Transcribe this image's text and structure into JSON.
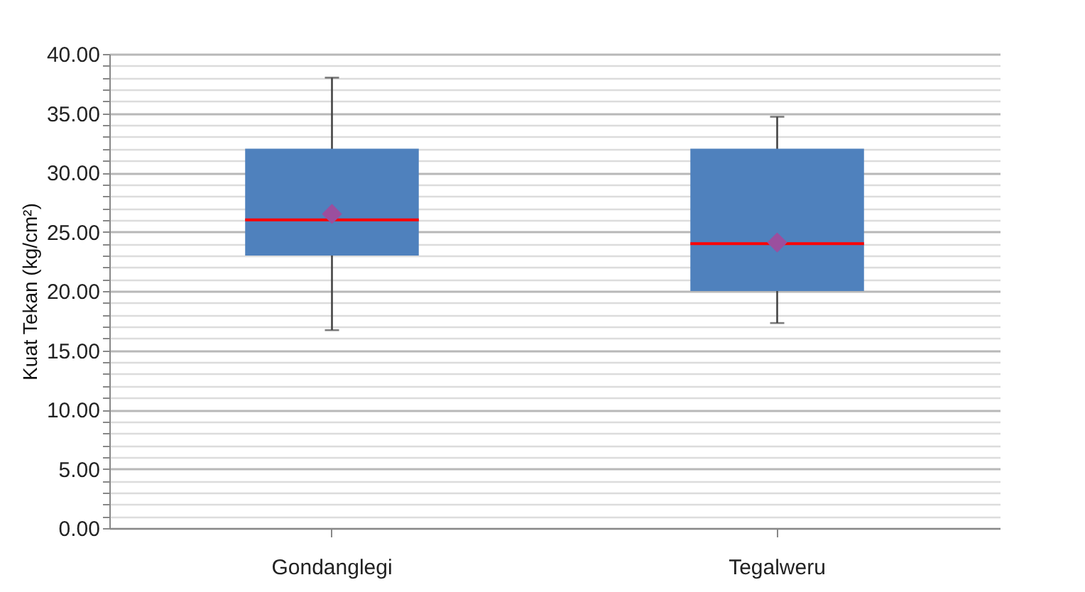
{
  "chart_data": {
    "type": "box",
    "ylabel": "Kuat Tekan (kg/cm²)",
    "categories": [
      "Gondanglegi",
      "Tegalweru"
    ],
    "boxes": [
      {
        "low": 16.7,
        "q1": 23,
        "median": 26,
        "q3": 32,
        "high": 38,
        "mean": 26.5
      },
      {
        "low": 17.3,
        "q1": 20,
        "median": 24,
        "q3": 32,
        "high": 34.7,
        "mean": 24.1
      }
    ],
    "color": "#4f81bd",
    "marker": "diamond",
    "ylim": [
      0,
      40
    ],
    "yticks": [
      {
        "value": 0,
        "label": "0.00"
      },
      {
        "value": 1,
        "label": null
      },
      {
        "value": 2,
        "label": null
      },
      {
        "value": 3,
        "label": null
      },
      {
        "value": 4,
        "label": null
      },
      {
        "value": 5,
        "label": "5.00"
      },
      {
        "value": 6,
        "label": null
      },
      {
        "value": 7,
        "label": null
      },
      {
        "value": 8,
        "label": null
      },
      {
        "value": 9,
        "label": null
      },
      {
        "value": 10,
        "label": "10.00"
      },
      {
        "value": 11,
        "label": null
      },
      {
        "value": 12,
        "label": null
      },
      {
        "value": 13,
        "label": null
      },
      {
        "value": 14,
        "label": null
      },
      {
        "value": 15,
        "label": "15.00"
      },
      {
        "value": 16,
        "label": null
      },
      {
        "value": 17,
        "label": null
      },
      {
        "value": 18,
        "label": null
      },
      {
        "value": 19,
        "label": null
      },
      {
        "value": 20,
        "label": "20.00"
      },
      {
        "value": 21,
        "label": null
      },
      {
        "value": 22,
        "label": null
      },
      {
        "value": 23,
        "label": null
      },
      {
        "value": 24,
        "label": null
      },
      {
        "value": 25,
        "label": "25.00"
      },
      {
        "value": 26,
        "label": null
      },
      {
        "value": 27,
        "label": null
      },
      {
        "value": 28,
        "label": null
      },
      {
        "value": 29,
        "label": null
      },
      {
        "value": 30,
        "label": "30.00"
      },
      {
        "value": 31,
        "label": null
      },
      {
        "value": 32,
        "label": null
      },
      {
        "value": 33,
        "label": null
      },
      {
        "value": 34,
        "label": null
      },
      {
        "value": 35,
        "label": "35.00"
      },
      {
        "value": 36,
        "label": null
      },
      {
        "value": 37,
        "label": null
      },
      {
        "value": 38,
        "label": null
      },
      {
        "value": 39,
        "label": null
      },
      {
        "value": 40,
        "label": "40.00"
      }
    ],
    "grid": true
  }
}
